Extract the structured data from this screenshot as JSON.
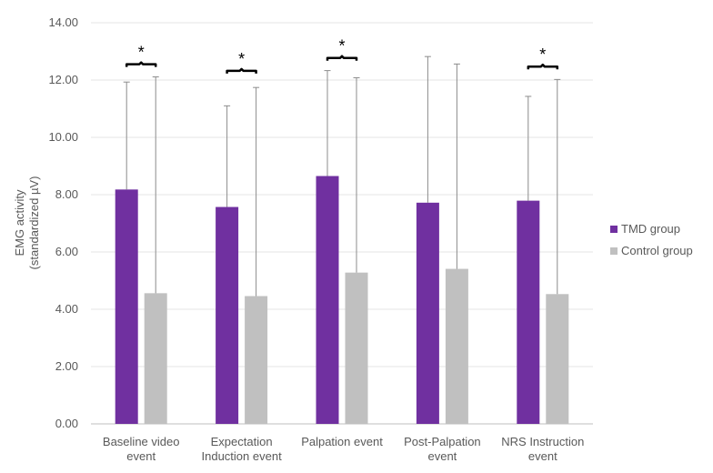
{
  "chart_data": {
    "type": "bar",
    "ylabel": [
      "EMG activity",
      "(standardized µV)"
    ],
    "ylim": [
      0,
      14
    ],
    "ytick_step": 2,
    "ytick_labels": [
      "0.00",
      "2.00",
      "4.00",
      "6.00",
      "8.00",
      "10.00",
      "12.00",
      "14.00"
    ],
    "grid": true,
    "legend_position": "right",
    "categories": [
      [
        "Baseline video",
        "event"
      ],
      [
        "Expectation",
        "Induction event"
      ],
      [
        "Palpation event"
      ],
      [
        "Post-Palpation",
        "event"
      ],
      [
        "NRS Instruction",
        "event"
      ]
    ],
    "series": [
      {
        "name": "TMD group",
        "color": "#7030A0",
        "values": [
          8.18,
          7.57,
          8.65,
          7.72,
          7.79
        ],
        "error_upper": [
          11.93,
          11.1,
          12.33,
          12.82,
          11.43
        ]
      },
      {
        "name": "Control group",
        "color": "#C0C0C0",
        "values": [
          4.56,
          4.46,
          5.28,
          5.41,
          4.53
        ],
        "error_upper": [
          12.11,
          11.74,
          12.08,
          12.56,
          12.02
        ]
      }
    ],
    "significance": [
      {
        "category_index": 0,
        "label": "*",
        "y": 12.55
      },
      {
        "category_index": 1,
        "label": "*",
        "y": 12.32
      },
      {
        "category_index": 2,
        "label": "*",
        "y": 12.77
      },
      {
        "category_index": 4,
        "label": "*",
        "y": 12.47
      }
    ]
  }
}
